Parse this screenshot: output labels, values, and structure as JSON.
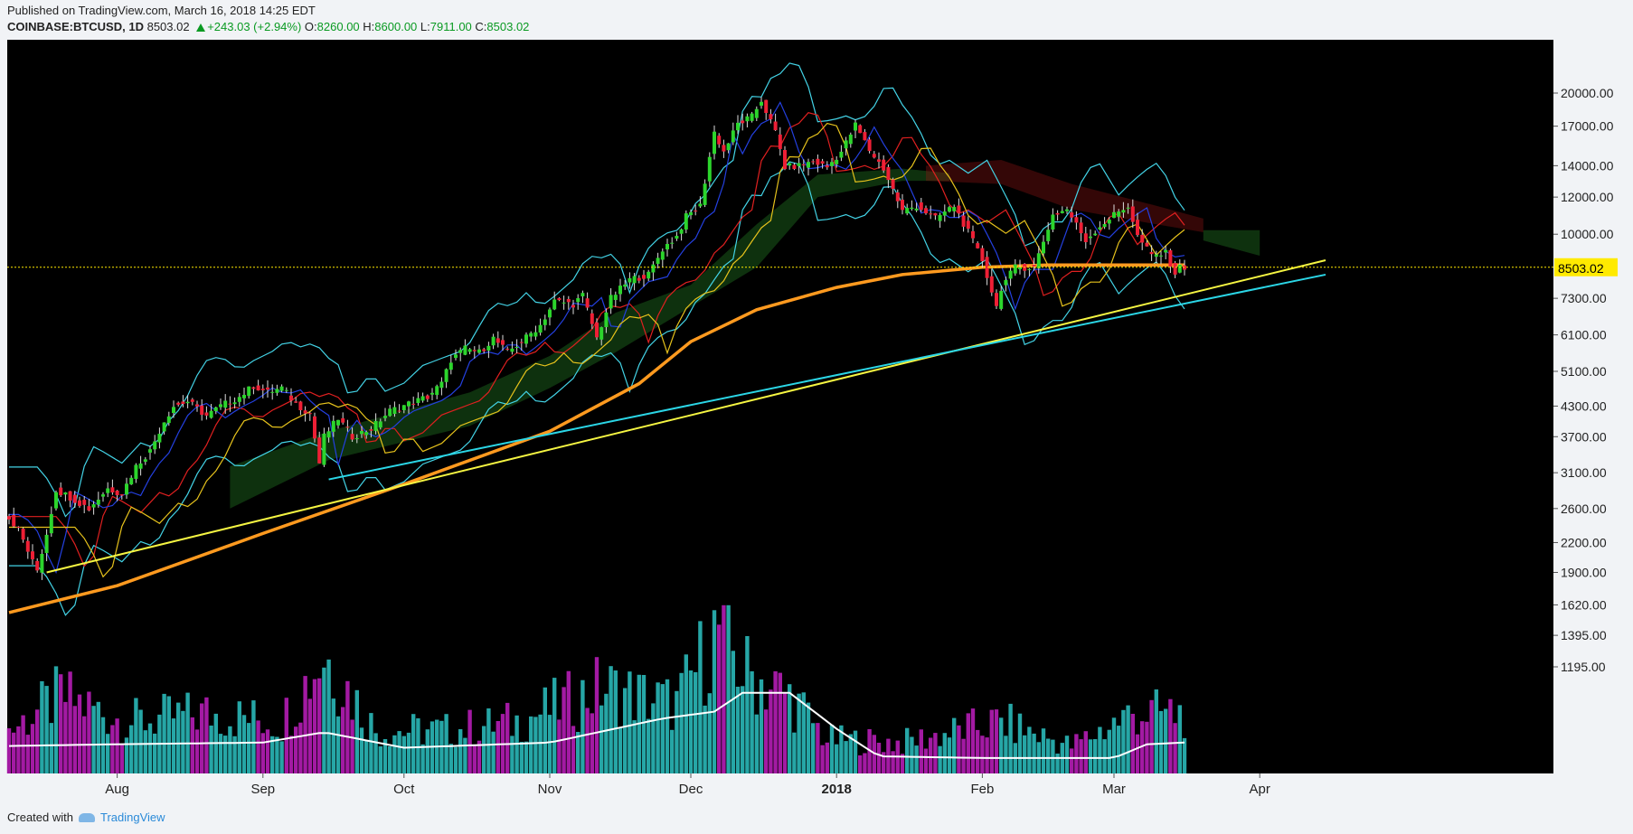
{
  "header": {
    "published": "Published on TradingView.com, March 16, 2018 14:25 EDT",
    "symbol": "COINBASE:BTCUSD, 1D",
    "last": "8503.02",
    "change": "+243.03 (+2.94%)",
    "open_label": "O:",
    "open": "8260.00",
    "high_label": "H:",
    "high": "8600.00",
    "low_label": "L:",
    "low": "7911.00",
    "close_label": "C:",
    "close": "8503.02"
  },
  "footer": {
    "created_with": "Created with",
    "brand": "TradingView"
  },
  "colors": {
    "up": "#2cd52c",
    "down": "#ee1f35",
    "bg": "#000000",
    "trend_yellow": "#f5f542",
    "trend_cyan": "#2bd6e6",
    "ma200": "#ff9a1f",
    "bband": "#43d3e6",
    "vol_avg": "#ffffff",
    "price_tag": "#ffea00"
  },
  "chart_data": {
    "type": "candlestick",
    "y_scale": "log",
    "y_ticks": [
      20000,
      17000,
      14000,
      12000,
      10000,
      7300,
      6100,
      5100,
      4300,
      3700,
      3100,
      2600,
      2200,
      1900,
      1620,
      1395,
      1195
    ],
    "y_tick_labels": [
      "20000.00",
      "17000.00",
      "14000.00",
      "12000.00",
      "10000.00",
      "7300.00",
      "6100.00",
      "5100.00",
      "4300.00",
      "3700.00",
      "3100.00",
      "2600.00",
      "2200.00",
      "1900.00",
      "1620.00",
      "1395.00",
      "1195.00"
    ],
    "x_ticks": [
      {
        "date": "2017-08-01",
        "label": "Aug"
      },
      {
        "date": "2017-09-01",
        "label": "Sep"
      },
      {
        "date": "2017-10-01",
        "label": "Oct"
      },
      {
        "date": "2017-11-01",
        "label": "Nov"
      },
      {
        "date": "2017-12-01",
        "label": "Dec"
      },
      {
        "date": "2018-01-01",
        "label": "2018"
      },
      {
        "date": "2018-02-01",
        "label": "Feb"
      },
      {
        "date": "2018-03-01",
        "label": "Mar"
      },
      {
        "date": "2018-04-01",
        "label": "Apr"
      }
    ],
    "first_date": "2017-07-09",
    "last_price_label": "8503.02",
    "price_path": [
      [
        "2017-07-09",
        2550
      ],
      [
        "2017-07-12",
        2350
      ],
      [
        "2017-07-15",
        2000
      ],
      [
        "2017-07-16",
        1920
      ],
      [
        "2017-07-18",
        2300
      ],
      [
        "2017-07-20",
        2850
      ],
      [
        "2017-07-23",
        2750
      ],
      [
        "2017-07-27",
        2600
      ],
      [
        "2017-07-31",
        2870
      ],
      [
        "2017-08-03",
        2800
      ],
      [
        "2017-08-06",
        3200
      ],
      [
        "2017-08-09",
        3450
      ],
      [
        "2017-08-12",
        4000
      ],
      [
        "2017-08-14",
        4300
      ],
      [
        "2017-08-17",
        4400
      ],
      [
        "2017-08-21",
        4100
      ],
      [
        "2017-08-24",
        4300
      ],
      [
        "2017-08-28",
        4500
      ],
      [
        "2017-08-31",
        4750
      ],
      [
        "2017-09-03",
        4600
      ],
      [
        "2017-09-06",
        4700
      ],
      [
        "2017-09-09",
        4350
      ],
      [
        "2017-09-12",
        4150
      ],
      [
        "2017-09-14",
        3250
      ],
      [
        "2017-09-15",
        3700
      ],
      [
        "2017-09-18",
        4050
      ],
      [
        "2017-09-21",
        3700
      ],
      [
        "2017-09-25",
        3850
      ],
      [
        "2017-09-29",
        4200
      ],
      [
        "2017-10-03",
        4350
      ],
      [
        "2017-10-07",
        4500
      ],
      [
        "2017-10-10",
        4800
      ],
      [
        "2017-10-12",
        5400
      ],
      [
        "2017-10-15",
        5700
      ],
      [
        "2017-10-18",
        5600
      ],
      [
        "2017-10-21",
        6000
      ],
      [
        "2017-10-24",
        5600
      ],
      [
        "2017-10-27",
        5900
      ],
      [
        "2017-10-31",
        6400
      ],
      [
        "2017-11-03",
        7200
      ],
      [
        "2017-11-07",
        7100
      ],
      [
        "2017-11-09",
        7400
      ],
      [
        "2017-11-12",
        6000
      ],
      [
        "2017-11-15",
        7300
      ],
      [
        "2017-11-19",
        8000
      ],
      [
        "2017-11-23",
        8200
      ],
      [
        "2017-11-26",
        9300
      ],
      [
        "2017-11-29",
        9900
      ],
      [
        "2017-12-01",
        10900
      ],
      [
        "2017-12-04",
        11500
      ],
      [
        "2017-12-07",
        16500
      ],
      [
        "2017-12-09",
        15000
      ],
      [
        "2017-12-12",
        17200
      ],
      [
        "2017-12-15",
        17800
      ],
      [
        "2017-12-17",
        19300
      ],
      [
        "2017-12-20",
        16500
      ],
      [
        "2017-12-22",
        13900
      ],
      [
        "2017-12-25",
        14000
      ],
      [
        "2017-12-28",
        14300
      ],
      [
        "2017-12-31",
        13900
      ],
      [
        "2018-01-03",
        15000
      ],
      [
        "2018-01-06",
        17100
      ],
      [
        "2018-01-09",
        15100
      ],
      [
        "2018-01-12",
        13800
      ],
      [
        "2018-01-16",
        11200
      ],
      [
        "2018-01-19",
        11500
      ],
      [
        "2018-01-23",
        10800
      ],
      [
        "2018-01-27",
        11500
      ],
      [
        "2018-01-30",
        10100
      ],
      [
        "2018-02-02",
        8800
      ],
      [
        "2018-02-05",
        7000
      ],
      [
        "2018-02-06",
        7700
      ],
      [
        "2018-02-09",
        8500
      ],
      [
        "2018-02-13",
        8500
      ],
      [
        "2018-02-17",
        11000
      ],
      [
        "2018-02-20",
        11300
      ],
      [
        "2018-02-24",
        9700
      ],
      [
        "2018-02-27",
        10400
      ],
      [
        "2018-03-02",
        11000
      ],
      [
        "2018-03-05",
        11500
      ],
      [
        "2018-03-07",
        9900
      ],
      [
        "2018-03-10",
        9000
      ],
      [
        "2018-03-13",
        9100
      ],
      [
        "2018-03-15",
        8260
      ],
      [
        "2018-03-16",
        8503
      ]
    ],
    "volume_path": [
      [
        "2017-07-09",
        0.25
      ],
      [
        "2017-07-20",
        0.45
      ],
      [
        "2017-08-03",
        0.3
      ],
      [
        "2017-08-20",
        0.35
      ],
      [
        "2017-09-05",
        0.3
      ],
      [
        "2017-09-14",
        0.7
      ],
      [
        "2017-09-25",
        0.25
      ],
      [
        "2017-10-10",
        0.25
      ],
      [
        "2017-10-25",
        0.3
      ],
      [
        "2017-11-08",
        0.45
      ],
      [
        "2017-11-12",
        0.5
      ],
      [
        "2017-11-28",
        0.4
      ],
      [
        "2017-12-07",
        0.85
      ],
      [
        "2017-12-12",
        0.6
      ],
      [
        "2017-12-22",
        0.45
      ],
      [
        "2017-12-30",
        0.2
      ],
      [
        "2018-01-15",
        0.18
      ],
      [
        "2018-02-05",
        0.3
      ],
      [
        "2018-02-20",
        0.16
      ],
      [
        "2018-03-05",
        0.35
      ],
      [
        "2018-03-16",
        0.35
      ]
    ],
    "volume_avg_path": [
      [
        "2017-07-09",
        0.16
      ],
      [
        "2017-08-01",
        0.17
      ],
      [
        "2017-09-01",
        0.18
      ],
      [
        "2017-09-14",
        0.24
      ],
      [
        "2017-10-01",
        0.15
      ],
      [
        "2017-11-01",
        0.18
      ],
      [
        "2017-11-25",
        0.32
      ],
      [
        "2017-12-06",
        0.36
      ],
      [
        "2017-12-12",
        0.47
      ],
      [
        "2017-12-22",
        0.47
      ],
      [
        "2018-01-01",
        0.26
      ],
      [
        "2018-01-10",
        0.1
      ],
      [
        "2018-02-01",
        0.09
      ],
      [
        "2018-03-01",
        0.09
      ],
      [
        "2018-03-08",
        0.17
      ],
      [
        "2018-03-16",
        0.18
      ]
    ],
    "trendlines": [
      {
        "name": "yellow",
        "from": [
          "2017-07-17",
          1900
        ],
        "to": [
          "2018-04-15",
          8800
        ]
      },
      {
        "name": "cyan",
        "from": [
          "2017-09-15",
          3000
        ],
        "to": [
          "2018-04-15",
          8200
        ]
      }
    ],
    "ma200_path": [
      [
        "2017-07-09",
        1560
      ],
      [
        "2017-08-01",
        1780
      ],
      [
        "2017-09-01",
        2300
      ],
      [
        "2017-10-01",
        2930
      ],
      [
        "2017-11-01",
        3800
      ],
      [
        "2017-11-20",
        4800
      ],
      [
        "2017-12-01",
        5900
      ],
      [
        "2017-12-15",
        6900
      ],
      [
        "2018-01-01",
        7700
      ],
      [
        "2018-01-15",
        8200
      ],
      [
        "2018-02-01",
        8500
      ],
      [
        "2018-02-15",
        8600
      ],
      [
        "2018-03-01",
        8600
      ],
      [
        "2018-03-16",
        8600
      ]
    ],
    "cloud_green": [
      [
        "2017-08-25",
        3200,
        2600
      ],
      [
        "2017-09-15",
        3800,
        3300
      ],
      [
        "2017-10-15",
        4600,
        3900
      ],
      [
        "2017-11-01",
        5500,
        4700
      ],
      [
        "2017-11-15",
        6800,
        5600
      ],
      [
        "2017-12-01",
        7800,
        7000
      ],
      [
        "2017-12-15",
        10500,
        8500
      ],
      [
        "2017-12-28",
        13400,
        12000
      ],
      [
        "2018-01-15",
        13800,
        13000
      ],
      [
        "2018-01-25",
        13500,
        13000
      ]
    ],
    "cloud_red": [
      [
        "2018-01-20",
        14000,
        13000
      ],
      [
        "2018-02-05",
        14400,
        12800
      ],
      [
        "2018-02-20",
        12800,
        11300
      ],
      [
        "2018-03-10",
        11500,
        10500
      ],
      [
        "2018-03-20",
        10800,
        10100
      ]
    ],
    "cloud_green_future": [
      [
        "2018-03-20",
        10200,
        9700
      ],
      [
        "2018-04-01",
        10200,
        9000
      ]
    ]
  }
}
